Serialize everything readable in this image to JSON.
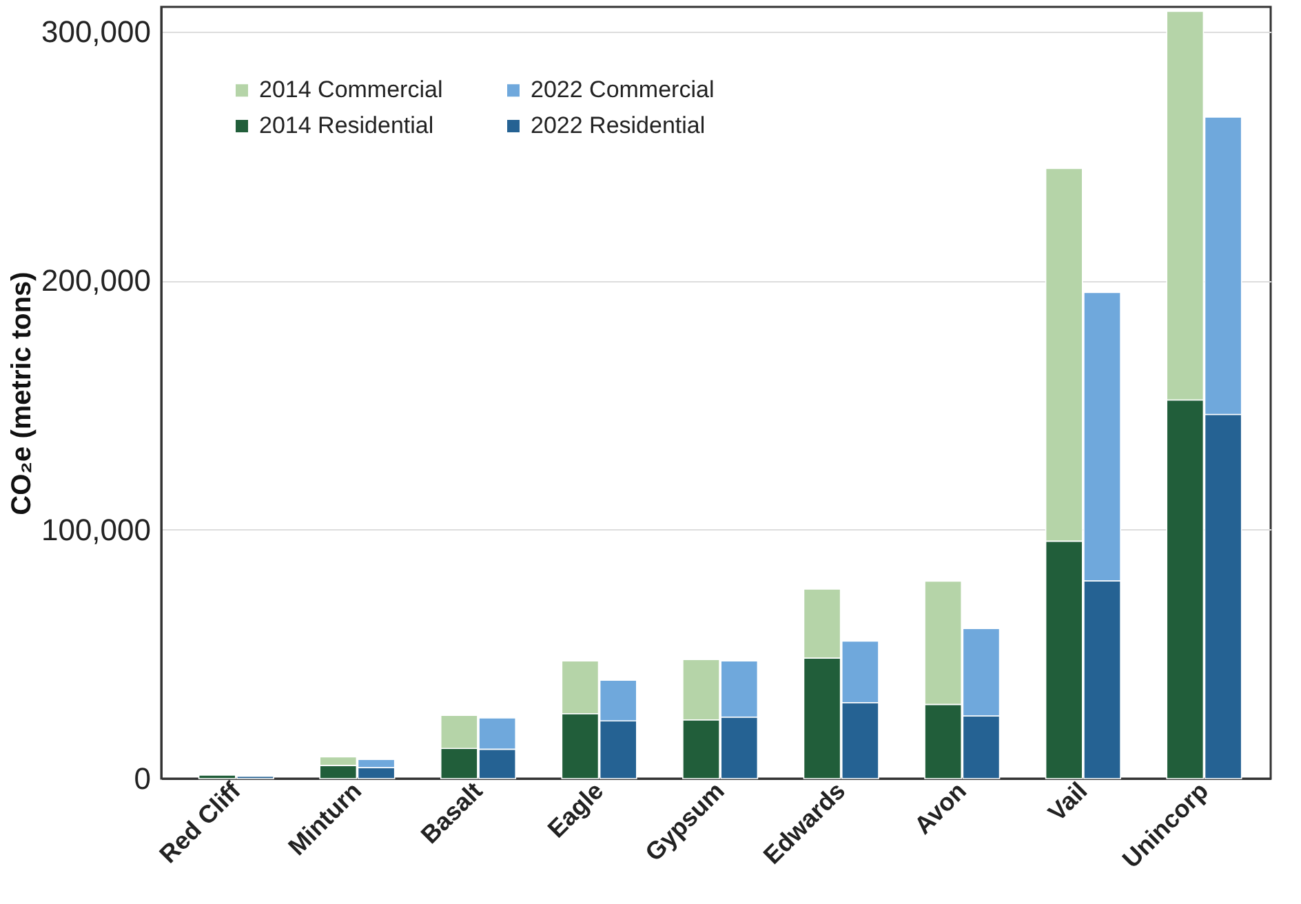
{
  "chart_data": {
    "type": "bar",
    "stacked": true,
    "ylabel": "CO₂e (metric tons)",
    "categories": [
      "Red Cliff",
      null,
      "Minturn",
      null,
      "Basalt",
      null,
      "Eagle",
      null,
      "Gypsum",
      null,
      "Edwards",
      null,
      "Avon",
      null,
      "Vail",
      null,
      "Unincorp",
      null
    ],
    "series": [
      {
        "name": "2014 Residential",
        "color": "#215e3a",
        "values": [
          1500,
          null,
          5300,
          null,
          12100,
          null,
          26100,
          null,
          23600,
          null,
          48400,
          null,
          29800,
          null,
          95400,
          null,
          152100,
          null
        ]
      },
      {
        "name": "2014 Commercial",
        "color": "#b5d4a8",
        "values": [
          300,
          null,
          3400,
          null,
          13300,
          null,
          21200,
          null,
          24200,
          null,
          27700,
          null,
          49500,
          null,
          149700,
          null,
          156100,
          null
        ]
      },
      {
        "name": "2022 Residential",
        "color": "#256293",
        "values": [
          null,
          1000,
          null,
          4400,
          null,
          11800,
          null,
          23200,
          null,
          24700,
          null,
          30500,
          null,
          25200,
          null,
          79400,
          null,
          146300
        ]
      },
      {
        "name": "2022 Commercial",
        "color": "#6fa8dc",
        "values": [
          null,
          200,
          null,
          3300,
          null,
          12600,
          null,
          16300,
          null,
          22600,
          null,
          24700,
          null,
          35100,
          null,
          115900,
          null,
          119400
        ]
      }
    ],
    "ylim": [
      0,
      310000
    ],
    "yticks": [
      0,
      {
        "value": 100000,
        "label": "100,000"
      },
      {
        "value": 200000,
        "label": "200,000"
      },
      {
        "value": 300000,
        "label": "300,000"
      }
    ],
    "grid": "y",
    "legend": "top left"
  }
}
